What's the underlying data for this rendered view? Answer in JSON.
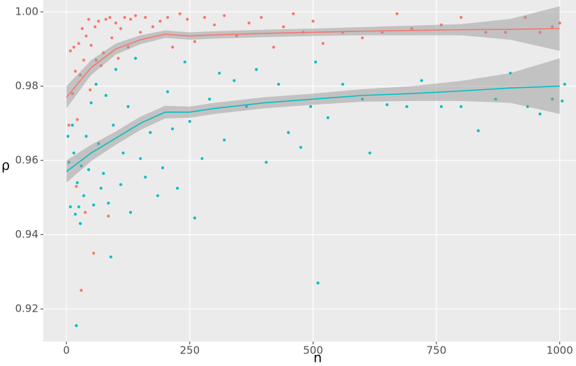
{
  "chart_data": {
    "type": "scatter",
    "x_label": "n",
    "y_label": "ρ",
    "xlim": [
      -47,
      1033
    ],
    "ylim": [
      0.9112,
      1.0032
    ],
    "xticks": [
      0,
      250,
      500,
      750,
      1000
    ],
    "yticks": [
      0.92,
      0.94,
      0.96,
      0.98,
      {
        "value": 1,
        "label": "1.00"
      }
    ],
    "grid": true,
    "series": [
      {
        "color": "#F8766D",
        "x": [
          5,
          8,
          12,
          15,
          18,
          20,
          22,
          25,
          28,
          30,
          32,
          35,
          38,
          40,
          45,
          48,
          50,
          55,
          58,
          60,
          65,
          70,
          75,
          80,
          85,
          88,
          92,
          100,
          105,
          110,
          118,
          125,
          130,
          140,
          150,
          160,
          175,
          190,
          205,
          215,
          230,
          245,
          260,
          280,
          300,
          320,
          345,
          370,
          395,
          420,
          440,
          460,
          480,
          500,
          520,
          560,
          600,
          640,
          670,
          700,
          760,
          800,
          850,
          890,
          930,
          960,
          985,
          1000
        ],
        "values": [
          0.9695,
          0.9895,
          0.978,
          0.9905,
          0.984,
          0.953,
          0.971,
          0.9915,
          0.983,
          0.925,
          0.9955,
          0.987,
          0.946,
          0.9935,
          0.998,
          0.979,
          0.991,
          0.935,
          0.996,
          0.987,
          0.9975,
          0.9855,
          0.989,
          0.998,
          0.945,
          0.9985,
          0.993,
          0.997,
          0.9875,
          0.9955,
          0.9985,
          0.9905,
          0.998,
          0.999,
          0.9945,
          0.9985,
          0.996,
          0.9975,
          0.9985,
          0.9905,
          0.9995,
          0.998,
          0.992,
          0.9985,
          0.9965,
          0.999,
          0.9935,
          0.997,
          0.9985,
          0.9905,
          0.996,
          0.9995,
          0.9945,
          0.9975,
          0.9915,
          0.9945,
          0.993,
          0.9945,
          0.9995,
          0.9955,
          0.9965,
          0.9985,
          0.9945,
          0.9945,
          0.9985,
          0.9945,
          0.996,
          0.997
        ],
        "smooth": {
          "x": [
            0,
            50,
            100,
            150,
            200,
            250,
            300,
            400,
            500,
            600,
            700,
            800,
            900,
            1000
          ],
          "values": [
            0.977,
            0.985,
            0.99,
            0.9925,
            0.994,
            0.9935,
            0.9938,
            0.9942,
            0.9945,
            0.9948,
            0.995,
            0.9952,
            0.9953,
            0.9955
          ],
          "lower": [
            0.974,
            0.983,
            0.9885,
            0.9913,
            0.993,
            0.9925,
            0.9928,
            0.9932,
            0.9935,
            0.9937,
            0.9937,
            0.9937,
            0.9925,
            0.9895
          ],
          "upper": [
            0.98,
            0.987,
            0.9915,
            0.9937,
            0.995,
            0.9945,
            0.9948,
            0.9952,
            0.9955,
            0.9959,
            0.9963,
            0.9967,
            0.9981,
            1.0015
          ]
        }
      },
      {
        "color": "#00BFC4",
        "x": [
          3,
          5,
          8,
          12,
          15,
          18,
          20,
          22,
          25,
          28,
          30,
          35,
          40,
          45,
          50,
          55,
          60,
          65,
          70,
          75,
          80,
          85,
          90,
          95,
          100,
          110,
          115,
          125,
          130,
          140,
          150,
          160,
          170,
          185,
          195,
          205,
          215,
          225,
          240,
          250,
          260,
          275,
          290,
          310,
          320,
          340,
          365,
          385,
          405,
          430,
          450,
          475,
          495,
          505,
          510,
          530,
          560,
          600,
          615,
          650,
          690,
          720,
          760,
          800,
          835,
          870,
          900,
          935,
          960,
          985,
          1005,
          1010
        ],
        "values": [
          0.9665,
          0.9595,
          0.9475,
          0.9695,
          0.962,
          0.9455,
          0.9155,
          0.954,
          0.9475,
          0.943,
          0.9585,
          0.9505,
          0.9665,
          0.9575,
          0.9755,
          0.948,
          0.9805,
          0.9645,
          0.9525,
          0.9565,
          0.9775,
          0.9485,
          0.934,
          0.9695,
          0.9845,
          0.9535,
          0.962,
          0.9745,
          0.946,
          0.9875,
          0.9605,
          0.9555,
          0.9675,
          0.9505,
          0.958,
          0.9785,
          0.9685,
          0.9525,
          0.9865,
          0.9705,
          0.9445,
          0.9605,
          0.9765,
          0.9835,
          0.9655,
          0.9815,
          0.9745,
          0.9845,
          0.9595,
          0.9805,
          0.9675,
          0.9635,
          0.9745,
          0.9865,
          0.927,
          0.9715,
          0.9805,
          0.9765,
          0.962,
          0.975,
          0.9745,
          0.9815,
          0.9745,
          0.9745,
          0.968,
          0.9765,
          0.9835,
          0.9745,
          0.9725,
          0.9765,
          0.976,
          0.9805
        ],
        "smooth": {
          "x": [
            0,
            50,
            100,
            150,
            200,
            250,
            300,
            400,
            500,
            600,
            700,
            800,
            900,
            1000
          ],
          "values": [
            0.957,
            0.962,
            0.966,
            0.97,
            0.973,
            0.973,
            0.974,
            0.9755,
            0.9765,
            0.9775,
            0.978,
            0.9787,
            0.9795,
            0.98
          ],
          "lower": [
            0.954,
            0.9598,
            0.9642,
            0.9682,
            0.9713,
            0.9715,
            0.9725,
            0.974,
            0.975,
            0.9758,
            0.976,
            0.976,
            0.9755,
            0.9725
          ],
          "upper": [
            0.96,
            0.9642,
            0.9678,
            0.9718,
            0.9747,
            0.9745,
            0.9755,
            0.977,
            0.978,
            0.9792,
            0.98,
            0.9814,
            0.9835,
            0.9875
          ]
        }
      }
    ]
  }
}
